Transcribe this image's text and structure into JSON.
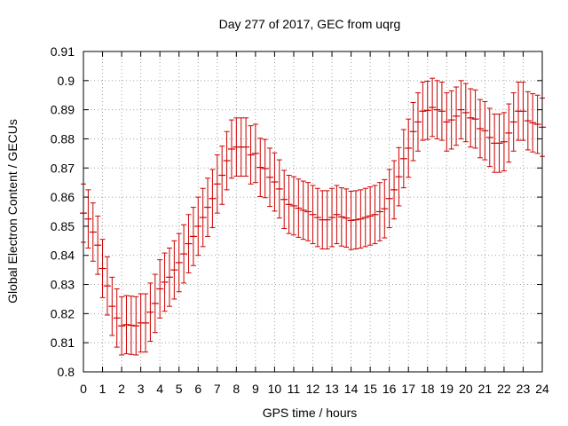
{
  "chart_data": {
    "type": "scatter",
    "title": "Day 277 of 2017, GEC from uqrg",
    "xlabel": "GPS time / hours",
    "ylabel": "Global Electron Content / GECUs",
    "xlim": [
      0,
      24
    ],
    "ylim": [
      0.8,
      0.91
    ],
    "x_ticks": [
      "0",
      "1",
      "2",
      "3",
      "4",
      "5",
      "6",
      "7",
      "8",
      "9",
      "10",
      "11",
      "12",
      "13",
      "14",
      "15",
      "16",
      "17",
      "18",
      "19",
      "20",
      "21",
      "22",
      "23",
      "24"
    ],
    "y_ticks": [
      "0.8",
      "0.81",
      "0.82",
      "0.83",
      "0.84",
      "0.85",
      "0.86",
      "0.87",
      "0.88",
      "0.89",
      "0.9",
      "0.91"
    ],
    "grid": true,
    "error_bars": true,
    "color": "#cc0000",
    "series": [
      {
        "x": [
          0,
          0.25,
          0.5,
          0.75,
          1,
          1.25,
          1.5,
          1.75,
          2,
          2.25,
          2.5,
          2.75,
          3,
          3.25,
          3.5,
          3.75,
          4,
          4.25,
          4.5,
          4.75,
          5,
          5.25,
          5.5,
          5.75,
          6,
          6.25,
          6.5,
          6.75,
          7,
          7.25,
          7.5,
          7.75,
          8,
          8.25,
          8.5,
          8.75,
          9,
          9.25,
          9.5,
          9.75,
          10,
          10.25,
          10.5,
          10.75,
          11,
          11.25,
          11.5,
          11.75,
          12,
          12.25,
          12.5,
          12.75,
          13,
          13.25,
          13.5,
          13.75,
          14,
          14.25,
          14.5,
          14.75,
          15,
          15.25,
          15.5,
          15.75,
          16,
          16.25,
          16.5,
          16.75,
          17,
          17.25,
          17.5,
          17.75,
          18,
          18.25,
          18.5,
          18.75,
          19,
          19.25,
          19.5,
          19.75,
          20,
          20.25,
          20.5,
          20.75,
          21,
          21.25,
          21.5,
          21.75,
          22,
          22.25,
          22.5,
          22.75,
          23,
          23.25,
          23.5,
          23.75,
          24
        ],
        "y": [
          0.8545,
          0.8525,
          0.848,
          0.8435,
          0.8355,
          0.8295,
          0.8225,
          0.8185,
          0.8158,
          0.8162,
          0.816,
          0.8158,
          0.8168,
          0.8168,
          0.8205,
          0.8235,
          0.8285,
          0.8308,
          0.8325,
          0.835,
          0.8375,
          0.8405,
          0.844,
          0.8465,
          0.85,
          0.853,
          0.8565,
          0.8595,
          0.8645,
          0.8675,
          0.8725,
          0.8765,
          0.8772,
          0.8772,
          0.8772,
          0.8745,
          0.875,
          0.8702,
          0.8698,
          0.8668,
          0.8652,
          0.8628,
          0.8592,
          0.8575,
          0.857,
          0.8562,
          0.8555,
          0.855,
          0.854,
          0.853,
          0.8522,
          0.8522,
          0.853,
          0.854,
          0.8532,
          0.8528,
          0.852,
          0.8522,
          0.8525,
          0.853,
          0.8535,
          0.854,
          0.855,
          0.856,
          0.8595,
          0.8625,
          0.867,
          0.8732,
          0.8768,
          0.8825,
          0.8858,
          0.8895,
          0.8898,
          0.8908,
          0.89,
          0.8895,
          0.8858,
          0.8865,
          0.8878,
          0.89,
          0.889,
          0.8872,
          0.8868,
          0.8835,
          0.8828,
          0.8805,
          0.8785,
          0.8785,
          0.879,
          0.882,
          0.8858,
          0.8895,
          0.8895,
          0.8862,
          0.8855,
          0.885,
          0.884
        ],
        "yerr": 0.01
      }
    ]
  }
}
